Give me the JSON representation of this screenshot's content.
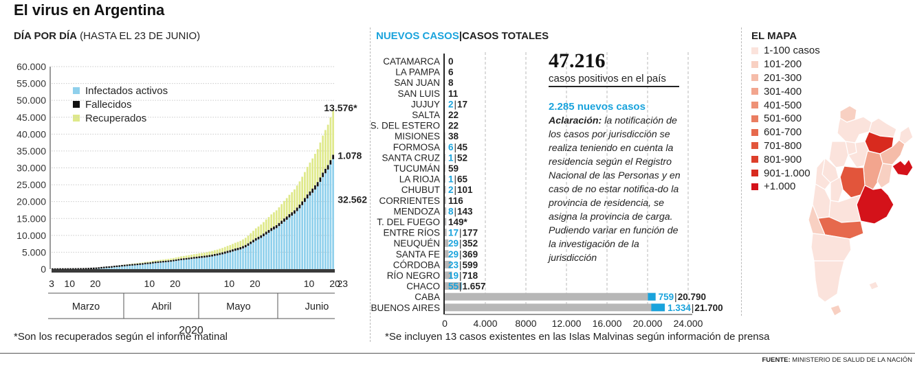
{
  "header": {
    "title": "El virus en Argentina"
  },
  "left_panel": {
    "subtitle_bold": "DÍA POR DÍA",
    "subtitle_rest": "(HASTA EL 23 DE JUNIO)",
    "footnote": "*Son los recuperados según el informe matinal"
  },
  "middle_panel": {
    "subtitle_new": "NUEVOS CASOS",
    "subtitle_sep": "|",
    "subtitle_total": "CASOS TOTALES",
    "footnote": "*Se incluyen 13 casos existentes en las Islas Malvinas según información de prensa"
  },
  "info_box": {
    "big_number": "47.216",
    "big_caption": "casos positivos en el país",
    "new_cases": "2.285 nuevos casos",
    "note_label": "Aclaración:",
    "note_text": "la notificación de los casos por jurisdicción se realiza teniendo en cuenta la residencia según el Registro Nacional de las Personas y en caso de no estar notifica-do la provincia de residencia, se asigna la provincia de carga. Pudiendo variar en función de la investigación de la jurisdicción"
  },
  "map_panel": {
    "title": "EL MAPA",
    "legend": [
      {
        "label": "1-100 casos",
        "color": "#fbe3dc"
      },
      {
        "label": "101-200",
        "color": "#f8d0c2"
      },
      {
        "label": "201-300",
        "color": "#f5bca9"
      },
      {
        "label": "301-400",
        "color": "#f2a58e"
      },
      {
        "label": "401-500",
        "color": "#ee9176"
      },
      {
        "label": "501-600",
        "color": "#ea7d61"
      },
      {
        "label": "601-700",
        "color": "#e6694d"
      },
      {
        "label": "701-800",
        "color": "#e2553b"
      },
      {
        "label": "801-900",
        "color": "#dd3f2b"
      },
      {
        "label": "901-1.000",
        "color": "#d82a1e"
      },
      {
        "label": "+1.000",
        "color": "#d4121a"
      }
    ]
  },
  "source": {
    "label": "FUENTE:",
    "text": "MINISTERIO DE SALUD DE LA NACIÓN"
  },
  "chart_data": [
    {
      "type": "bar",
      "stacked": true,
      "title": "DÍA POR DÍA (HASTA EL 23 DE JUNIO)",
      "x_year_label": "2020",
      "x_months": [
        "Marzo",
        "Abril",
        "Mayo",
        "Junio"
      ],
      "x_tick_labels": [
        "3",
        "10",
        "20",
        "10",
        "20",
        "10",
        "20",
        "10",
        "20",
        "23"
      ],
      "ylim": [
        0,
        60000
      ],
      "y_ticks": [
        "0",
        "5.000",
        "10.000",
        "15.000",
        "20.000",
        "25.000",
        "30.000",
        "35.000",
        "40.000",
        "45.000",
        "50.000",
        "55.000",
        "60.000"
      ],
      "legend_position": "top-left",
      "grid": true,
      "series": [
        {
          "name": "Infectados activos",
          "color": "#8fd0ec"
        },
        {
          "name": "Fallecidos",
          "color": "#111111"
        },
        {
          "name": "Recuperados",
          "color": "#dfe98a"
        }
      ],
      "daily_totals": [
        1,
        2,
        12,
        17,
        19,
        21,
        31,
        34,
        45,
        56,
        65,
        79,
        97,
        128,
        158,
        225,
        266,
        301,
        387,
        502,
        589,
        690,
        745,
        820,
        966,
        1054,
        1133,
        1265,
        1353,
        1451,
        1554,
        1628,
        1715,
        1795,
        1894,
        1975,
        2142,
        2208,
        2277,
        2443,
        2571,
        2669,
        2758,
        2839,
        2941,
        3031,
        3144,
        3288,
        3435,
        3607,
        3780,
        3892,
        4003,
        4127,
        4285,
        4428,
        4532,
        4681,
        4783,
        4887,
        5020,
        5208,
        5371,
        5611,
        5776,
        6034,
        6265,
        6563,
        6879,
        7134,
        7479,
        7805,
        8068,
        8371,
        8809,
        9283,
        9931,
        10649,
        11353,
        12076,
        12628,
        13228,
        13933,
        14702,
        15419,
        16214,
        16838,
        17415,
        18319,
        19268,
        20197,
        21037,
        22020,
        22794,
        23620,
        24761,
        25987,
        27373,
        28764,
        30295,
        31577,
        32785,
        34159,
        35552,
        37510,
        39570,
        41204,
        42785,
        44931,
        47216
      ],
      "daily_deaths": [
        0,
        0,
        1,
        1,
        2,
        2,
        2,
        2,
        2,
        3,
        3,
        3,
        3,
        4,
        4,
        4,
        4,
        6,
        8,
        12,
        17,
        20,
        20,
        22,
        23,
        28,
        38,
        41,
        47,
        53,
        62,
        71,
        80,
        87,
        95,
        103,
        108,
        117,
        125,
        131,
        132,
        136,
        147,
        152,
        162,
        168,
        174,
        183,
        194,
        207,
        218,
        225,
        230,
        240,
        251,
        262,
        269,
        275,
        282,
        292,
        300,
        312,
        318,
        326,
        332,
        346,
        355,
        369,
        383,
        392,
        401,
        413,
        423,
        432,
        447,
        466,
        481,
        490,
        499,
        510,
        522,
        538,
        552,
        575,
        596,
        616,
        628,
        637,
        658,
        685,
        707,
        726,
        738,
        754,
        776,
        806,
        833,
        872,
        907,
        944,
        965,
        1000,
        1016,
        1042,
        1068,
        1075,
        1076,
        1077,
        1078,
        1078
      ],
      "annotations": [
        {
          "series": "Recuperados",
          "value": 13576,
          "label": "13.576*"
        },
        {
          "series": "Fallecidos",
          "value": 1078,
          "label": "1.078"
        },
        {
          "series": "Infectados activos",
          "value": 32562,
          "label": "32.562"
        }
      ]
    },
    {
      "type": "bar",
      "orientation": "horizontal",
      "title": "NUEVOS CASOS | CASOS TOTALES",
      "xlim": [
        0,
        24000
      ],
      "x_ticks": [
        "0",
        "4.000",
        "8000",
        "12.000",
        "16.000",
        "20.000",
        "24.000"
      ],
      "categories": [
        "CATAMARCA",
        "LA PAMPA",
        "SAN JUAN",
        "SAN LUIS",
        "JUJUY",
        "SALTA",
        "S. DEL ESTERO",
        "MISIONES",
        "FORMOSA",
        "SANTA CRUZ",
        "TUCUMÁN",
        "LA RIOJA",
        "CHUBUT",
        "CORRIENTES",
        "MENDOZA",
        "T. DEL FUEGO",
        "ENTRE RÍOS",
        "NEUQUÉN",
        "SANTA FE",
        "CÓRDOBA",
        "RÍO NEGRO",
        "CHACO",
        "CABA",
        "BUENOS AIRES"
      ],
      "series": [
        {
          "name": "NUEVOS CASOS",
          "color": "#1aa3dc",
          "values": [
            0,
            0,
            0,
            0,
            2,
            0,
            0,
            0,
            6,
            1,
            0,
            1,
            2,
            0,
            8,
            0,
            17,
            29,
            29,
            23,
            19,
            55,
            759,
            1334
          ]
        },
        {
          "name": "CASOS TOTALES",
          "color": "#b7b7b7",
          "values": [
            0,
            6,
            8,
            11,
            17,
            22,
            22,
            38,
            45,
            52,
            59,
            65,
            101,
            116,
            143,
            149,
            177,
            352,
            369,
            599,
            718,
            1657,
            20790,
            21700
          ]
        }
      ],
      "value_labels": [
        {
          "new": "",
          "total": "0"
        },
        {
          "new": "",
          "total": "6"
        },
        {
          "new": "",
          "total": "8"
        },
        {
          "new": "",
          "total": "11"
        },
        {
          "new": "2",
          "total": "17"
        },
        {
          "new": "",
          "total": "22"
        },
        {
          "new": "",
          "total": "22"
        },
        {
          "new": "",
          "total": "38"
        },
        {
          "new": "6",
          "total": "45"
        },
        {
          "new": "1",
          "total": "52"
        },
        {
          "new": "",
          "total": "59"
        },
        {
          "new": "1",
          "total": "65"
        },
        {
          "new": "2",
          "total": "101"
        },
        {
          "new": "",
          "total": "116"
        },
        {
          "new": "8",
          "total": "143"
        },
        {
          "new": "",
          "total": "149*"
        },
        {
          "new": "17",
          "total": "177"
        },
        {
          "new": "29",
          "total": "352"
        },
        {
          "new": "29",
          "total": "369"
        },
        {
          "new": "23",
          "total": "599"
        },
        {
          "new": "19",
          "total": "718"
        },
        {
          "new": "55",
          "total": "1.657"
        },
        {
          "new": "759",
          "total": "20.790"
        },
        {
          "new": "1.334",
          "total": "21.700"
        }
      ]
    }
  ]
}
